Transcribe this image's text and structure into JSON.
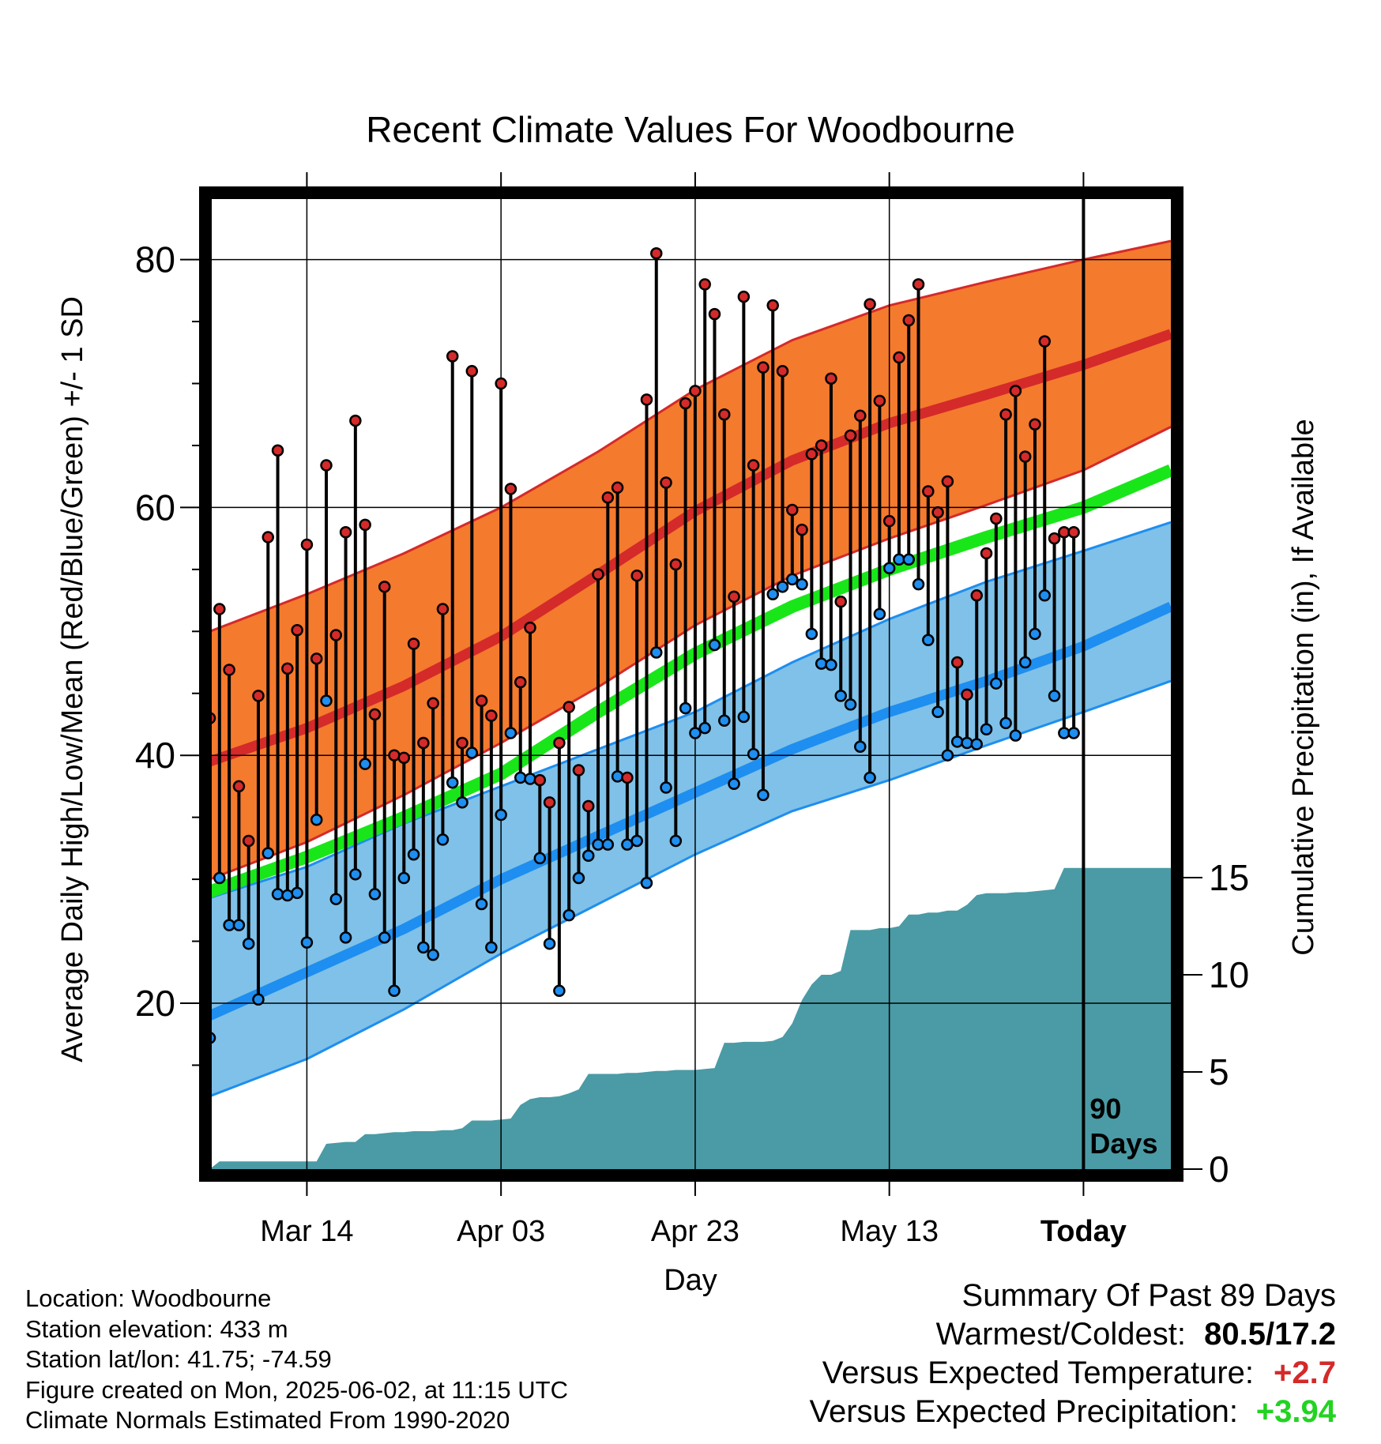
{
  "chart_data": {
    "type": "line",
    "title": "Recent Climate Values For Woodbourne",
    "xlabel": "Day",
    "ylabel_left": "Average Daily High/Low/Mean (Red/Blue/Green) +/- 1 SD",
    "ylabel_right": "Cumulative Precipitation (in), If Available",
    "x_ticks": [
      {
        "day": 10,
        "label": "Mar 14"
      },
      {
        "day": 30,
        "label": "Apr 03"
      },
      {
        "day": 50,
        "label": "Apr 23"
      },
      {
        "day": 70,
        "label": "May 13"
      },
      {
        "day": 90,
        "label": "Today"
      }
    ],
    "xlim": [
      0,
      99
    ],
    "ylim_temp": [
      12,
      86
    ],
    "y_ticks_temp": [
      20,
      40,
      60,
      80
    ],
    "ylim_precip": [
      0,
      15.5
    ],
    "y_ticks_precip": [
      0,
      5,
      10,
      15
    ],
    "today_marker": {
      "day": 90,
      "label_line1": "90",
      "label_line2": "Days"
    },
    "colors": {
      "high_band": "#f47a2e",
      "high_line": "#d42a2a",
      "low_band": "#7fc1e8",
      "low_line": "#1e8ef0",
      "mean_line": "#19e619",
      "precip": "#4a9ba5",
      "high_dot": "#d42a2a",
      "low_dot": "#1e8ef0"
    },
    "normals": {
      "days": [
        0,
        10,
        20,
        30,
        40,
        50,
        60,
        70,
        80,
        90,
        99
      ],
      "high_upper": [
        50.0,
        53.0,
        56.3,
        60.0,
        64.5,
        69.5,
        73.5,
        76.3,
        78.2,
        80.0,
        81.5
      ],
      "high_mean": [
        39.5,
        42.2,
        45.6,
        49.6,
        54.6,
        59.7,
        63.8,
        66.8,
        69.1,
        71.5,
        74.0
      ],
      "high_lower": [
        30.0,
        33.0,
        36.8,
        41.0,
        45.5,
        50.5,
        54.5,
        57.5,
        60.2,
        63.0,
        66.5
      ],
      "mean": [
        29.0,
        31.8,
        35.0,
        38.5,
        43.5,
        48.2,
        52.0,
        55.0,
        57.6,
        60.0,
        63.0
      ],
      "low_upper": [
        28.5,
        31.0,
        34.5,
        37.5,
        40.5,
        43.5,
        47.5,
        51.0,
        54.0,
        56.5,
        58.8
      ],
      "low_mean": [
        19.0,
        22.5,
        26.0,
        30.0,
        33.5,
        37.0,
        40.5,
        43.5,
        46.0,
        48.8,
        52.0
      ],
      "low_lower": [
        12.5,
        15.5,
        19.5,
        24.0,
        28.0,
        32.0,
        35.5,
        38.0,
        40.8,
        43.5,
        46.0
      ]
    },
    "observed": {
      "days": [
        0,
        1,
        2,
        3,
        4,
        5,
        6,
        7,
        8,
        9,
        10,
        11,
        12,
        13,
        14,
        15,
        16,
        17,
        18,
        19,
        20,
        21,
        22,
        23,
        24,
        25,
        26,
        27,
        28,
        29,
        30,
        31,
        32,
        33,
        34,
        35,
        36,
        37,
        38,
        39,
        40,
        41,
        42,
        43,
        44,
        45,
        46,
        47,
        48,
        49,
        50,
        51,
        52,
        53,
        54,
        55,
        56,
        57,
        58,
        59,
        60,
        61,
        62,
        63,
        64,
        65,
        66,
        67,
        68,
        69,
        70,
        71,
        72,
        73,
        74,
        75,
        76,
        77,
        78,
        79,
        80,
        81,
        82,
        83,
        84,
        85,
        86,
        87,
        88,
        89
      ],
      "high": [
        43.0,
        51.8,
        46.9,
        37.5,
        33.1,
        44.8,
        57.6,
        64.6,
        47.0,
        50.1,
        57.0,
        47.8,
        63.4,
        49.7,
        58.0,
        67.0,
        58.6,
        43.3,
        53.6,
        40.0,
        39.8,
        49.0,
        41.0,
        44.2,
        51.8,
        72.2,
        41.0,
        71.0,
        44.4,
        43.2,
        70.0,
        61.5,
        45.9,
        50.3,
        38.0,
        36.2,
        41.0,
        43.9,
        38.8,
        35.9,
        54.6,
        60.8,
        61.6,
        38.2,
        54.5,
        68.7,
        80.5,
        62.0,
        55.4,
        68.4,
        69.4,
        78.0,
        75.6,
        67.5,
        52.8,
        77.0,
        63.4,
        71.3,
        76.3,
        71.0,
        59.8,
        58.2,
        64.3,
        65.0,
        70.4,
        52.4,
        65.8,
        67.4,
        76.4,
        68.6,
        58.9,
        72.1,
        75.1,
        78.0,
        61.3,
        59.6,
        62.1,
        47.5,
        44.9,
        52.9,
        56.3,
        59.1,
        67.5,
        69.4,
        64.1,
        66.7,
        73.4,
        57.5,
        58.0,
        58.0
      ],
      "low": [
        17.2,
        30.1,
        26.3,
        26.3,
        24.8,
        20.3,
        32.1,
        28.8,
        28.7,
        28.9,
        24.9,
        34.8,
        44.4,
        28.4,
        25.3,
        30.4,
        39.3,
        28.8,
        25.3,
        21.0,
        30.1,
        32.0,
        24.5,
        23.9,
        33.2,
        37.8,
        36.2,
        40.2,
        28.0,
        24.5,
        35.2,
        41.8,
        38.2,
        38.1,
        31.7,
        24.8,
        21.0,
        27.1,
        30.1,
        31.9,
        32.8,
        32.8,
        38.3,
        32.8,
        33.1,
        29.7,
        48.3,
        37.4,
        33.1,
        43.8,
        41.8,
        42.2,
        48.9,
        42.8,
        37.7,
        43.1,
        40.1,
        36.8,
        53.0,
        53.6,
        54.2,
        53.8,
        49.8,
        47.4,
        47.3,
        44.8,
        44.1,
        40.7,
        38.2,
        51.4,
        55.1,
        55.8,
        55.8,
        53.8,
        49.3,
        43.5,
        40.0,
        41.1,
        41.0,
        40.9,
        42.1,
        45.8,
        42.6,
        41.6,
        47.5,
        49.8,
        52.9,
        44.8,
        41.8,
        41.8
      ]
    },
    "precip_cumulative": {
      "days": [
        0,
        1,
        10,
        11,
        12,
        14,
        15,
        16,
        17,
        18,
        19,
        20,
        21,
        22,
        23,
        24,
        25,
        26,
        27,
        28,
        29,
        30,
        31,
        32,
        33,
        34,
        35,
        36,
        37,
        38,
        39,
        40,
        41,
        42,
        43,
        44,
        45,
        46,
        47,
        48,
        49,
        50,
        51,
        52,
        53,
        54,
        55,
        56,
        57,
        58,
        59,
        60,
        61,
        62,
        63,
        64,
        65,
        66,
        67,
        68,
        69,
        70,
        71,
        72,
        73,
        74,
        75,
        76,
        77,
        78,
        79,
        80,
        81,
        82,
        83,
        84,
        85,
        86,
        87,
        88,
        89,
        90,
        99
      ],
      "values": [
        0.0,
        0.4,
        0.4,
        0.4,
        1.3,
        1.4,
        1.4,
        1.8,
        1.8,
        1.85,
        1.9,
        1.9,
        1.95,
        1.95,
        1.95,
        2.0,
        2.0,
        2.1,
        2.5,
        2.5,
        2.5,
        2.55,
        2.6,
        3.3,
        3.6,
        3.7,
        3.7,
        3.75,
        3.9,
        4.1,
        4.9,
        4.9,
        4.9,
        4.9,
        4.95,
        4.95,
        5.0,
        5.05,
        5.05,
        5.1,
        5.1,
        5.1,
        5.15,
        5.2,
        6.5,
        6.5,
        6.55,
        6.55,
        6.55,
        6.6,
        6.8,
        7.5,
        8.7,
        9.5,
        10.0,
        10.0,
        10.2,
        12.3,
        12.3,
        12.3,
        12.4,
        12.4,
        12.5,
        13.1,
        13.1,
        13.2,
        13.2,
        13.3,
        13.3,
        13.6,
        14.1,
        14.2,
        14.2,
        14.2,
        14.25,
        14.25,
        14.3,
        14.35,
        14.4,
        15.5,
        15.5,
        15.5,
        15.5
      ]
    }
  },
  "info": {
    "location": "Location: Woodbourne",
    "elevation": "Station elevation: 433 m",
    "latlon": "Station lat/lon: 41.75; -74.59",
    "created": "Figure created on Mon, 2025-06-02, at 11:15 UTC",
    "normals": "Climate Normals Estimated From 1990-2020"
  },
  "summary": {
    "title": "Summary Of Past 89 Days",
    "warm_label": "Warmest/Coldest:",
    "warm_value": "80.5/17.2",
    "temp_label": "Versus Expected Temperature:",
    "temp_value": "+2.7",
    "precip_label": "Versus Expected Precipitation:",
    "precip_value": "+3.94"
  }
}
